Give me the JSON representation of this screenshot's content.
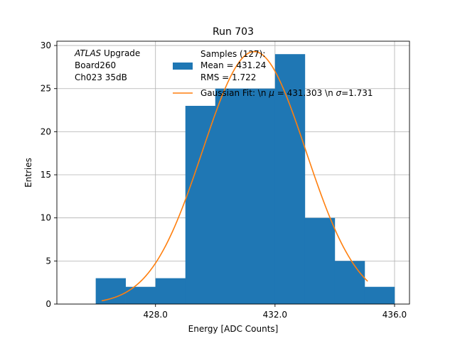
{
  "chart_data": {
    "type": "bar",
    "title": "Run 703",
    "xlabel": "Energy [ADC Counts]",
    "ylabel": "Entries",
    "xlim": [
      424.7,
      436.5
    ],
    "ylim": [
      0,
      30.5
    ],
    "xticks": [
      428.0,
      432.0,
      436.0
    ],
    "xtick_labels": [
      "428.0",
      "432.0",
      "436.0"
    ],
    "yticks": [
      0,
      5,
      10,
      15,
      20,
      25,
      30
    ],
    "ytick_labels": [
      "0",
      "5",
      "10",
      "15",
      "20",
      "25",
      "30"
    ],
    "grid": true,
    "bar_color": "#1f77b4",
    "fit_color": "#ff7f0e",
    "bins": [
      {
        "left": 426.0,
        "right": 427.0,
        "value": 3
      },
      {
        "left": 427.0,
        "right": 428.0,
        "value": 2
      },
      {
        "left": 428.0,
        "right": 429.0,
        "value": 3
      },
      {
        "left": 429.0,
        "right": 430.0,
        "value": 23
      },
      {
        "left": 430.0,
        "right": 431.0,
        "value": 25
      },
      {
        "left": 431.0,
        "right": 432.0,
        "value": 25
      },
      {
        "left": 432.0,
        "right": 433.0,
        "value": 29
      },
      {
        "left": 433.0,
        "right": 434.0,
        "value": 10
      },
      {
        "left": 434.0,
        "right": 435.0,
        "value": 5
      },
      {
        "left": 435.0,
        "right": 436.0,
        "value": 2
      }
    ],
    "fit": {
      "amplitude": 29.3,
      "mu": 431.303,
      "sigma": 1.731,
      "x_start": 426.2,
      "x_end": 435.1
    },
    "annotation": {
      "atlas": "ATLAS",
      "upgrade": " Upgrade",
      "line2": " Board260",
      "line3": " Ch023 35dB"
    },
    "legend": {
      "samples_title": "Samples (127):",
      "samples_mean": " Mean = 431.24",
      "samples_rms": " RMS = 1.722",
      "fit_label_prefix": "Gaussian Fit: \\n ",
      "fit_mu_symbol": "μ",
      "fit_mu_value": " = 431.303 \\n ",
      "fit_sigma_symbol": "σ",
      "fit_sigma_value": "=1.731"
    }
  }
}
